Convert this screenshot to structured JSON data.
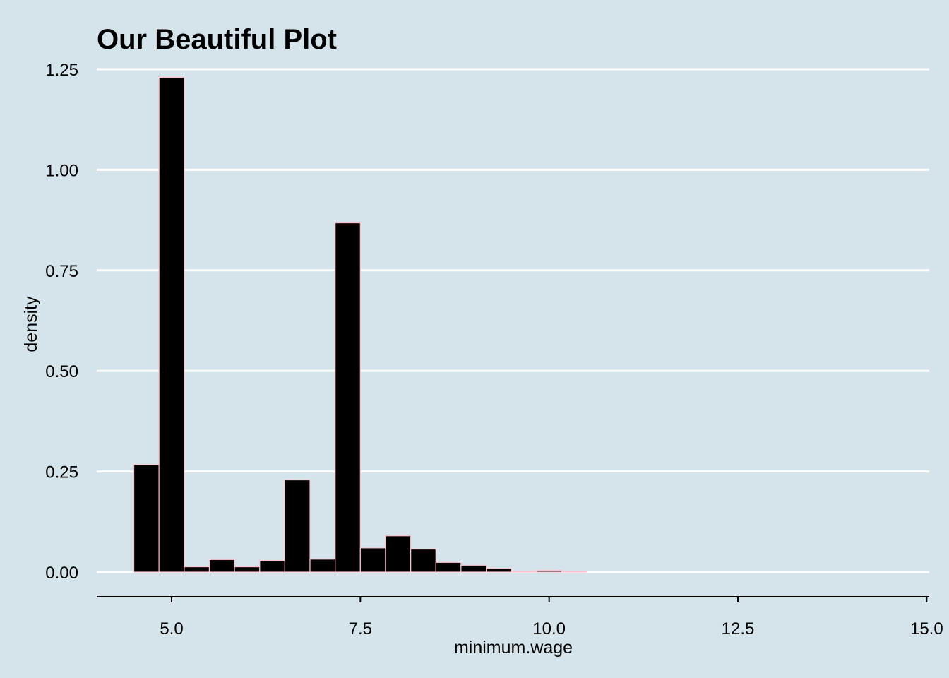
{
  "chart_data": {
    "type": "bar",
    "subtype": "histogram",
    "title": "Our Beautiful Plot",
    "xlabel": "minimum.wage",
    "ylabel": "density",
    "xlim": [
      4.0,
      15.0
    ],
    "ylim": [
      -0.06,
      1.25
    ],
    "x_ticks": [
      5.0,
      7.5,
      10.0,
      12.5,
      15.0
    ],
    "x_tick_labels": [
      "5.0",
      "7.5",
      "10.0",
      "12.5",
      "15.0"
    ],
    "y_ticks": [
      0.0,
      0.25,
      0.5,
      0.75,
      1.0,
      1.25
    ],
    "y_tick_labels": [
      "0.00",
      "0.25",
      "0.50",
      "0.75",
      "1.00",
      "1.25"
    ],
    "grid": "horizontal-major",
    "legend": "none",
    "bin_width": 0.333,
    "bins": [
      {
        "x0": 4.5,
        "x1": 4.833,
        "density": 0.267
      },
      {
        "x0": 4.833,
        "x1": 5.167,
        "density": 1.23
      },
      {
        "x0": 5.167,
        "x1": 5.5,
        "density": 0.013
      },
      {
        "x0": 5.5,
        "x1": 5.833,
        "density": 0.031
      },
      {
        "x0": 5.833,
        "x1": 6.167,
        "density": 0.013
      },
      {
        "x0": 6.167,
        "x1": 6.5,
        "density": 0.029
      },
      {
        "x0": 6.5,
        "x1": 6.833,
        "density": 0.229
      },
      {
        "x0": 6.833,
        "x1": 7.167,
        "density": 0.032
      },
      {
        "x0": 7.167,
        "x1": 7.5,
        "density": 0.868
      },
      {
        "x0": 7.5,
        "x1": 7.833,
        "density": 0.06
      },
      {
        "x0": 7.833,
        "x1": 8.167,
        "density": 0.09
      },
      {
        "x0": 8.167,
        "x1": 8.5,
        "density": 0.057
      },
      {
        "x0": 8.5,
        "x1": 8.833,
        "density": 0.024
      },
      {
        "x0": 8.833,
        "x1": 9.167,
        "density": 0.017
      },
      {
        "x0": 9.167,
        "x1": 9.5,
        "density": 0.009
      },
      {
        "x0": 9.5,
        "x1": 9.833,
        "density": 0.002
      },
      {
        "x0": 9.833,
        "x1": 10.167,
        "density": 0.004
      },
      {
        "x0": 10.167,
        "x1": 10.5,
        "density": 0.001
      },
      {
        "x0": 10.5,
        "x1": 10.833,
        "density": 0.0
      },
      {
        "x0": 10.833,
        "x1": 11.167,
        "density": 0.0
      },
      {
        "x0": 11.167,
        "x1": 11.5,
        "density": 0.0
      },
      {
        "x0": 11.5,
        "x1": 11.833,
        "density": 0.0
      },
      {
        "x0": 11.833,
        "x1": 12.167,
        "density": 0.0
      },
      {
        "x0": 12.167,
        "x1": 12.5,
        "density": 0.0
      },
      {
        "x0": 12.5,
        "x1": 12.833,
        "density": 0.0
      },
      {
        "x0": 12.833,
        "x1": 13.167,
        "density": 0.0
      },
      {
        "x0": 13.167,
        "x1": 13.5,
        "density": 0.0
      },
      {
        "x0": 13.5,
        "x1": 13.833,
        "density": 0.0
      },
      {
        "x0": 13.833,
        "x1": 14.167,
        "density": 0.0
      },
      {
        "x0": 14.167,
        "x1": 14.5,
        "density": 0.0
      }
    ],
    "colors": {
      "background": "#d5e4eb",
      "bar_fill": "#000000",
      "bar_outline": "#ffc0cb",
      "grid": "#ffffff",
      "axis": "#000000"
    }
  }
}
